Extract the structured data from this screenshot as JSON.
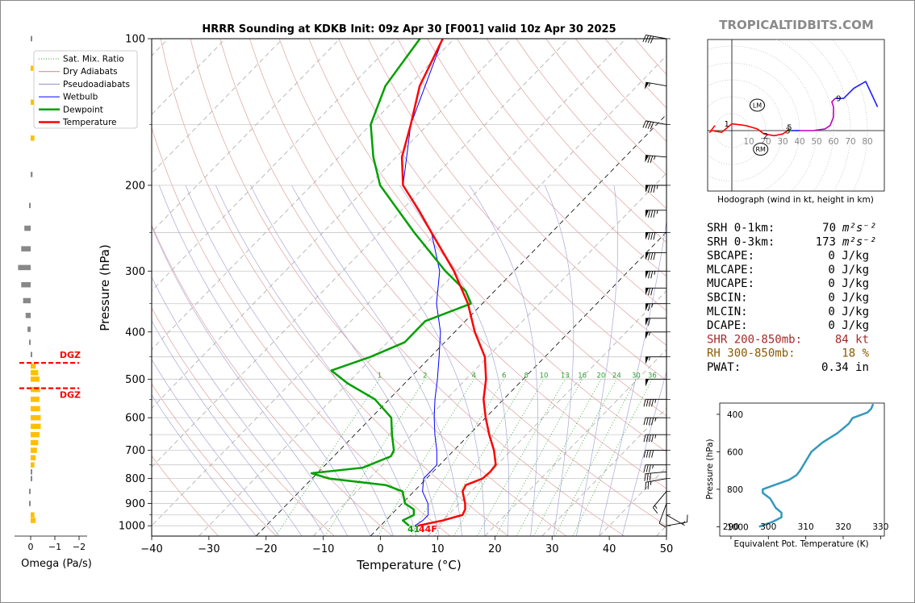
{
  "brand": "TROPICALTIDBITS.COM",
  "chart_data": {
    "type": "skew-t",
    "title": "HRRR Sounding at KDKB Init: 09z Apr 30 [F001] valid 10z Apr 30 2025",
    "xlabel": "Temperature (°C)",
    "ylabel": "Pressure (hPa)",
    "xlim": [
      -40,
      50
    ],
    "ylim": [
      1050,
      100
    ],
    "x_ticks": [
      "−40",
      "−30",
      "−20",
      "−10",
      "0",
      "10",
      "20",
      "30",
      "40",
      "50"
    ],
    "x_tick_values": [
      -40,
      -30,
      -20,
      -10,
      0,
      10,
      20,
      30,
      40,
      50
    ],
    "y_ticks": [
      "100",
      "200",
      "300",
      "400",
      "500",
      "600",
      "700",
      "800",
      "900",
      "1000"
    ],
    "y_tick_values": [
      100,
      200,
      300,
      400,
      500,
      600,
      700,
      800,
      900,
      1000
    ],
    "legend": {
      "placement": "top-left",
      "entries": [
        {
          "label": "Sat. Mix. Ratio",
          "color": "#2ca02c",
          "style": "dotted"
        },
        {
          "label": "Dry Adiabats",
          "color": "#d08080",
          "style": "solid"
        },
        {
          "label": "Pseudoadiabats",
          "color": "#9090c8",
          "style": "solid"
        },
        {
          "label": "Wetbulb",
          "color": "#0000ff",
          "style": "solid"
        },
        {
          "label": "Dewpoint",
          "color": "#00a000",
          "style": "solid"
        },
        {
          "label": "Temperature",
          "color": "#ff0000",
          "style": "solid"
        }
      ]
    },
    "mixing_ratio_labels": [
      "1",
      "2",
      "4",
      "6",
      "8",
      "10",
      "13",
      "16",
      "20",
      "24",
      "30",
      "36"
    ],
    "mixing_ratio_values": [
      1,
      2,
      4,
      6,
      8,
      10,
      13,
      16,
      20,
      24,
      30,
      36
    ],
    "surface_labels": {
      "dewpoint": "41",
      "temperature": "44F"
    },
    "temperature": [
      {
        "p": 1000,
        "t": 6.5
      },
      {
        "p": 975,
        "t": 10
      },
      {
        "p": 950,
        "t": 12.5
      },
      {
        "p": 925,
        "t": 12.0
      },
      {
        "p": 900,
        "t": 11.0
      },
      {
        "p": 850,
        "t": 8.5
      },
      {
        "p": 825,
        "t": 8.0
      },
      {
        "p": 800,
        "t": 9.8
      },
      {
        "p": 775,
        "t": 10.0
      },
      {
        "p": 750,
        "t": 9.8
      },
      {
        "p": 700,
        "t": 7.0
      },
      {
        "p": 650,
        "t": 3.5
      },
      {
        "p": 600,
        "t": 0.0
      },
      {
        "p": 550,
        "t": -3.5
      },
      {
        "p": 500,
        "t": -6.5
      },
      {
        "p": 450,
        "t": -10.5
      },
      {
        "p": 400,
        "t": -16.5
      },
      {
        "p": 350,
        "t": -22.5
      },
      {
        "p": 300,
        "t": -30.5
      },
      {
        "p": 250,
        "t": -41.0
      },
      {
        "p": 225,
        "t": -47.0
      },
      {
        "p": 200,
        "t": -54.0
      },
      {
        "p": 175,
        "t": -59.0
      },
      {
        "p": 150,
        "t": -63.0
      },
      {
        "p": 125,
        "t": -68.0
      },
      {
        "p": 100,
        "t": -72.0
      }
    ],
    "dewpoint": [
      {
        "p": 1000,
        "t": 5.0
      },
      {
        "p": 975,
        "t": 3.0
      },
      {
        "p": 950,
        "t": 4.0
      },
      {
        "p": 925,
        "t": 3.0
      },
      {
        "p": 900,
        "t": 0.5
      },
      {
        "p": 850,
        "t": -2.0
      },
      {
        "p": 825,
        "t": -6.0
      },
      {
        "p": 800,
        "t": -17.0
      },
      {
        "p": 780,
        "t": -21.0
      },
      {
        "p": 760,
        "t": -13.0
      },
      {
        "p": 720,
        "t": -10.0
      },
      {
        "p": 700,
        "t": -10.5
      },
      {
        "p": 650,
        "t": -13.5
      },
      {
        "p": 600,
        "t": -16.5
      },
      {
        "p": 550,
        "t": -22.5
      },
      {
        "p": 510,
        "t": -30.0
      },
      {
        "p": 480,
        "t": -35.0
      },
      {
        "p": 450,
        "t": -30.5
      },
      {
        "p": 420,
        "t": -27.0
      },
      {
        "p": 380,
        "t": -27.0
      },
      {
        "p": 350,
        "t": -22.0
      },
      {
        "p": 330,
        "t": -25.0
      },
      {
        "p": 300,
        "t": -32.0
      },
      {
        "p": 250,
        "t": -44.0
      },
      {
        "p": 200,
        "t": -58.0
      },
      {
        "p": 175,
        "t": -64.0
      },
      {
        "p": 150,
        "t": -70.0
      },
      {
        "p": 125,
        "t": -74.0
      },
      {
        "p": 100,
        "t": -76.0
      }
    ],
    "wetbulb": [
      {
        "p": 1000,
        "t": 6.0
      },
      {
        "p": 975,
        "t": 6.5
      },
      {
        "p": 950,
        "t": 6.5
      },
      {
        "p": 900,
        "t": 4.5
      },
      {
        "p": 850,
        "t": 1.5
      },
      {
        "p": 800,
        "t": -0.5
      },
      {
        "p": 780,
        "t": -0.5
      },
      {
        "p": 750,
        "t": -0.5
      },
      {
        "p": 700,
        "t": -3.0
      },
      {
        "p": 650,
        "t": -6.0
      },
      {
        "p": 600,
        "t": -9.0
      },
      {
        "p": 550,
        "t": -12.0
      },
      {
        "p": 500,
        "t": -15.0
      },
      {
        "p": 450,
        "t": -18.5
      },
      {
        "p": 400,
        "t": -22.5
      },
      {
        "p": 350,
        "t": -28.0
      },
      {
        "p": 300,
        "t": -33.0
      },
      {
        "p": 250,
        "t": -41.0
      },
      {
        "p": 200,
        "t": -54.0
      },
      {
        "p": 150,
        "t": -63.0
      },
      {
        "p": 100,
        "t": -72.0
      }
    ],
    "omega": {
      "xlabel": "Omega (Pa/s)",
      "x_ticks": [
        "0",
        "−1",
        "−2"
      ],
      "x_tick_values": [
        0,
        -1,
        -2
      ],
      "dgz_label": "DGZ",
      "dgz_top_p": 463,
      "dgz_bottom_p": 522,
      "values": [
        {
          "p": 100,
          "v": 0.02
        },
        {
          "p": 115,
          "v": 0.04
        },
        {
          "p": 135,
          "v": 0.05
        },
        {
          "p": 160,
          "v": 0.06
        },
        {
          "p": 190,
          "v": 0.03
        },
        {
          "p": 220,
          "v": -0.02
        },
        {
          "p": 245,
          "v": -0.1
        },
        {
          "p": 270,
          "v": -0.15
        },
        {
          "p": 295,
          "v": -0.2
        },
        {
          "p": 320,
          "v": -0.15
        },
        {
          "p": 345,
          "v": -0.12
        },
        {
          "p": 370,
          "v": -0.08
        },
        {
          "p": 395,
          "v": -0.05
        },
        {
          "p": 420,
          "v": -0.02
        },
        {
          "p": 445,
          "v": 0.02
        },
        {
          "p": 470,
          "v": 0.08
        },
        {
          "p": 485,
          "v": 0.12
        },
        {
          "p": 500,
          "v": 0.14
        },
        {
          "p": 525,
          "v": 0.15
        },
        {
          "p": 550,
          "v": 0.14
        },
        {
          "p": 575,
          "v": 0.15
        },
        {
          "p": 600,
          "v": 0.16
        },
        {
          "p": 625,
          "v": 0.16
        },
        {
          "p": 650,
          "v": 0.14
        },
        {
          "p": 675,
          "v": 0.12
        },
        {
          "p": 700,
          "v": 0.1
        },
        {
          "p": 725,
          "v": 0.08
        },
        {
          "p": 750,
          "v": 0.06
        },
        {
          "p": 775,
          "v": 0.02
        },
        {
          "p": 800,
          "v": 0.01
        },
        {
          "p": 850,
          "v": -0.02
        },
        {
          "p": 900,
          "v": -0.01
        },
        {
          "p": 950,
          "v": 0.06
        },
        {
          "p": 975,
          "v": 0.08
        }
      ]
    },
    "winds": [
      {
        "p": 1000,
        "dir": 80,
        "kt": 8
      },
      {
        "p": 950,
        "dir": 120,
        "kt": 5
      },
      {
        "p": 900,
        "dir": 200,
        "kt": 10
      },
      {
        "p": 850,
        "dir": 220,
        "kt": 15
      },
      {
        "p": 800,
        "dir": 260,
        "kt": 25
      },
      {
        "p": 775,
        "dir": 265,
        "kt": 30
      },
      {
        "p": 750,
        "dir": 270,
        "kt": 35
      },
      {
        "p": 700,
        "dir": 270,
        "kt": 40
      },
      {
        "p": 650,
        "dir": 270,
        "kt": 45
      },
      {
        "p": 600,
        "dir": 270,
        "kt": 45
      },
      {
        "p": 550,
        "dir": 270,
        "kt": 45
      },
      {
        "p": 500,
        "dir": 270,
        "kt": 50
      },
      {
        "p": 450,
        "dir": 270,
        "kt": 55
      },
      {
        "p": 400,
        "dir": 270,
        "kt": 55
      },
      {
        "p": 375,
        "dir": 270,
        "kt": 60
      },
      {
        "p": 350,
        "dir": 270,
        "kt": 65
      },
      {
        "p": 325,
        "dir": 270,
        "kt": 70
      },
      {
        "p": 300,
        "dir": 270,
        "kt": 75
      },
      {
        "p": 275,
        "dir": 270,
        "kt": 80
      },
      {
        "p": 250,
        "dir": 270,
        "kt": 80
      },
      {
        "p": 225,
        "dir": 270,
        "kt": 85
      },
      {
        "p": 200,
        "dir": 270,
        "kt": 85
      },
      {
        "p": 175,
        "dir": 275,
        "kt": 75
      },
      {
        "p": 150,
        "dir": 280,
        "kt": 40
      },
      {
        "p": 125,
        "dir": 280,
        "kt": 55
      },
      {
        "p": 100,
        "dir": 280,
        "kt": 40
      }
    ],
    "hodograph": {
      "caption": "Hodograph (wind in kt, height in km)",
      "ring_labels": [
        "10",
        "20",
        "30",
        "40",
        "50",
        "60",
        "70",
        "80"
      ],
      "ring_values": [
        10,
        20,
        30,
        40,
        50,
        60,
        70,
        80
      ],
      "lm_label": "LM",
      "lm": [
        15,
        15
      ],
      "rm_label": "RM",
      "rm": [
        17,
        -11
      ],
      "height_labels": [
        {
          "label": "1",
          "u": -3,
          "v": 4
        },
        {
          "label": "2",
          "u": 20,
          "v": -3
        },
        {
          "label": "3",
          "u": 33,
          "v": 0
        },
        {
          "label": "5",
          "u": 34,
          "v": 2
        },
        {
          "label": "9",
          "u": 63,
          "v": 19
        }
      ],
      "segments": [
        {
          "color": "#ff0000",
          "points": [
            [
              -10,
              3
            ],
            [
              -13,
              -1
            ],
            [
              -12,
              0
            ],
            [
              -6,
              -1
            ],
            [
              0,
              4
            ],
            [
              8,
              3
            ],
            [
              15,
              1
            ],
            [
              19,
              -2
            ],
            [
              25,
              -3
            ],
            [
              30,
              -2
            ],
            [
              33,
              0
            ]
          ]
        },
        {
          "color": "#00a000",
          "points": [
            [
              33,
              0
            ],
            [
              35,
              0
            ]
          ]
        },
        {
          "color": "#2020ff",
          "points": [
            [
              35,
              0
            ],
            [
              40,
              0
            ]
          ]
        },
        {
          "color": "#c000c0",
          "points": [
            [
              40,
              0
            ],
            [
              48,
              0
            ],
            [
              55,
              1
            ],
            [
              58,
              3
            ],
            [
              60,
              8
            ],
            [
              60,
              14
            ],
            [
              59,
              17
            ],
            [
              61,
              19
            ]
          ]
        },
        {
          "color": "#2020ff",
          "points": [
            [
              61,
              19
            ],
            [
              66,
              19
            ],
            [
              72,
              25
            ],
            [
              79,
              29
            ],
            [
              86,
              14
            ]
          ]
        }
      ]
    },
    "indices": [
      {
        "label": "SRH 0-1km:",
        "value": "70",
        "unit": "m²s⁻²",
        "color": "#000000"
      },
      {
        "label": "SRH 0-3km:",
        "value": "173",
        "unit": "m²s⁻²",
        "color": "#000000"
      },
      {
        "label": "SBCAPE:",
        "value": "0 J/kg",
        "unit": "",
        "color": "#000000"
      },
      {
        "label": "MLCAPE:",
        "value": "0 J/kg",
        "unit": "",
        "color": "#000000"
      },
      {
        "label": "MUCAPE:",
        "value": "0 J/kg",
        "unit": "",
        "color": "#000000"
      },
      {
        "label": "SBCIN:",
        "value": "0 J/kg",
        "unit": "",
        "color": "#000000"
      },
      {
        "label": "MLCIN:",
        "value": "0 J/kg",
        "unit": "",
        "color": "#000000"
      },
      {
        "label": "DCAPE:",
        "value": "0 J/kg",
        "unit": "",
        "color": "#000000"
      },
      {
        "label": "SHR 200-850mb:",
        "value": "84 kt",
        "unit": "",
        "color": "#a52a2a"
      },
      {
        "label": "RH 300-850mb:",
        "value": "18 %",
        "unit": "",
        "color": "#8b5a00"
      },
      {
        "label": "PWAT:",
        "value": "0.34 in",
        "unit": "",
        "color": "#000000"
      }
    ],
    "theta_e": {
      "xlabel": "Equivalent Pot. Temperature (K)",
      "ylabel": "Pressure (hPa)",
      "x_ticks": [
        "290",
        "300",
        "310",
        "320",
        "330"
      ],
      "x_tick_values": [
        290,
        300,
        310,
        320,
        330
      ],
      "xlim": [
        287,
        331
      ],
      "y_ticks": [
        "400",
        "600",
        "800",
        "1000"
      ],
      "y_tick_values": [
        400,
        600,
        800,
        1000
      ],
      "ylim": [
        1050,
        340
      ],
      "color": "#3399bb",
      "points": [
        {
          "p": 1000,
          "theta": 297.5
        },
        {
          "p": 975,
          "theta": 301
        },
        {
          "p": 950,
          "theta": 303.5
        },
        {
          "p": 925,
          "theta": 303.5
        },
        {
          "p": 900,
          "theta": 302
        },
        {
          "p": 850,
          "theta": 300.5
        },
        {
          "p": 820,
          "theta": 298.5
        },
        {
          "p": 800,
          "theta": 298.5
        },
        {
          "p": 775,
          "theta": 302
        },
        {
          "p": 750,
          "theta": 305.5
        },
        {
          "p": 725,
          "theta": 307.5
        },
        {
          "p": 700,
          "theta": 308.5
        },
        {
          "p": 650,
          "theta": 310
        },
        {
          "p": 600,
          "theta": 311.5
        },
        {
          "p": 550,
          "theta": 314.5
        },
        {
          "p": 500,
          "theta": 318.5
        },
        {
          "p": 450,
          "theta": 321.5
        },
        {
          "p": 420,
          "theta": 322.5
        },
        {
          "p": 390,
          "theta": 326.5
        },
        {
          "p": 370,
          "theta": 327.5
        },
        {
          "p": 345,
          "theta": 328
        }
      ]
    }
  }
}
